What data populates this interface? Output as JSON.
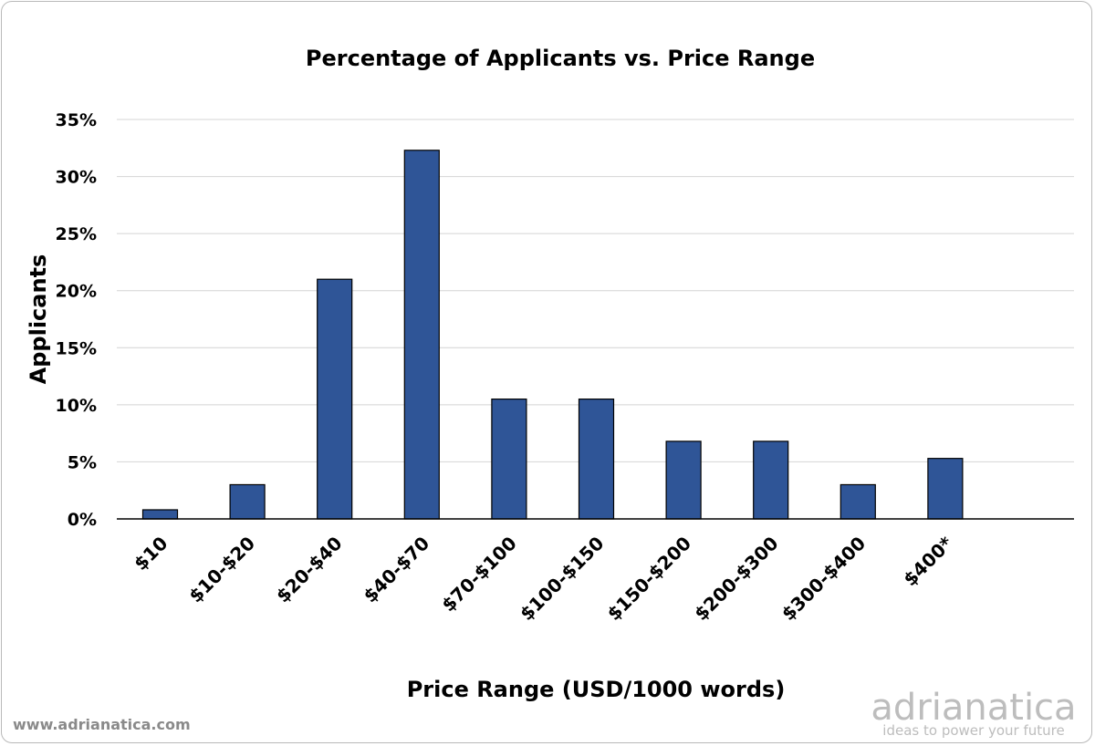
{
  "chart_data": {
    "type": "bar",
    "title": "Percentage of Applicants vs. Price Range",
    "xlabel": "Price Range (USD/1000 words)",
    "ylabel": "Applicants",
    "categories": [
      "$10",
      "$10-$20",
      "$20-$40",
      "$40-$70",
      "$70-$100",
      "$100-$150",
      "$150-$200",
      "$200-$300",
      "$300-$400",
      "$400*"
    ],
    "values": [
      0.8,
      3.0,
      21.0,
      32.3,
      10.5,
      10.5,
      6.8,
      6.8,
      3.0,
      5.3
    ],
    "ylim": [
      0,
      35
    ],
    "yticks": [
      0,
      5,
      10,
      15,
      20,
      25,
      30,
      35
    ],
    "ytick_labels": [
      "0%",
      "5%",
      "10%",
      "15%",
      "20%",
      "25%",
      "30%",
      "35%"
    ],
    "bar_color": "#2f5597",
    "grid": true
  },
  "footer": {
    "website": "www.adrianatica.com",
    "brand_name": "adrianatica",
    "brand_tagline": "ideas to power your future",
    "brand_color": "#bdbdbd"
  }
}
